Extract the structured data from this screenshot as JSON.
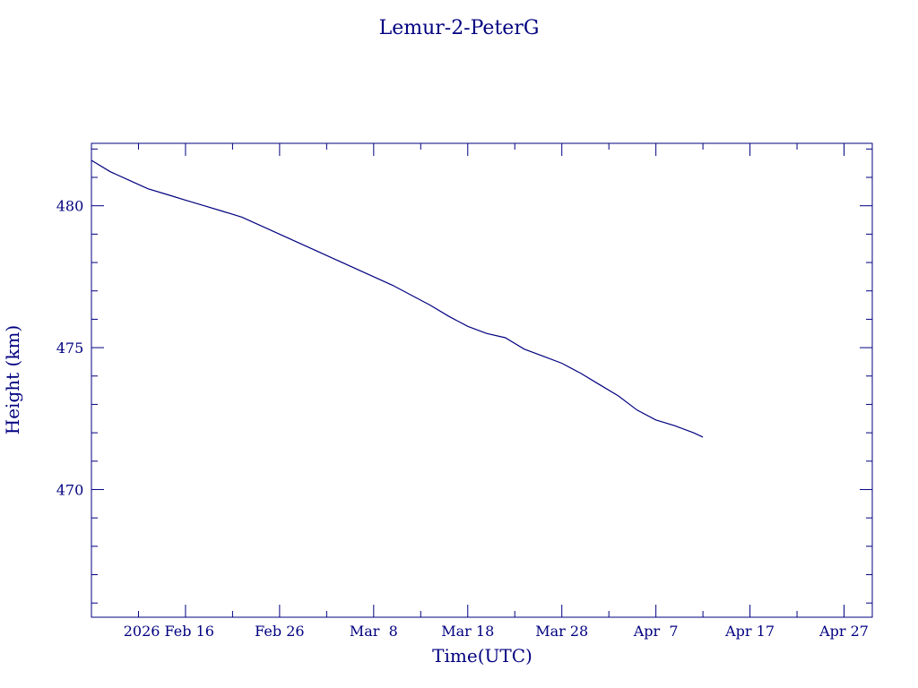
{
  "colors": {
    "ink": "#000080",
    "background": "#ffffff"
  },
  "chart_data": {
    "type": "line",
    "title": "Lemur-2-PeterG",
    "xlabel": "Time(UTC)",
    "ylabel": "Height (km)",
    "xlim": [
      "2026-02-06",
      "2026-04-30"
    ],
    "ylim": [
      465.5,
      482.2
    ],
    "x_ticks": [
      {
        "date": "2026-02-16",
        "label": "2026 Feb 16"
      },
      {
        "date": "2026-02-26",
        "label": "Feb 26"
      },
      {
        "date": "2026-03-08",
        "label": "Mar  8"
      },
      {
        "date": "2026-03-18",
        "label": "Mar 18"
      },
      {
        "date": "2026-03-28",
        "label": "Mar 28"
      },
      {
        "date": "2026-04-07",
        "label": "Apr  7"
      },
      {
        "date": "2026-04-17",
        "label": "Apr 17"
      },
      {
        "date": "2026-04-27",
        "label": "Apr 27"
      }
    ],
    "x_minor_tick_days": 5,
    "y_ticks": [
      470,
      475,
      480
    ],
    "y_minor_step": 1,
    "grid": false,
    "series": [
      {
        "x": [
          "2026-02-06",
          "2026-02-08",
          "2026-02-10",
          "2026-02-12",
          "2026-02-14",
          "2026-02-16",
          "2026-02-18",
          "2026-02-20",
          "2026-02-22",
          "2026-02-24",
          "2026-02-26",
          "2026-02-28",
          "2026-03-02",
          "2026-03-04",
          "2026-03-06",
          "2026-03-08",
          "2026-03-10",
          "2026-03-12",
          "2026-03-14",
          "2026-03-16",
          "2026-03-18",
          "2026-03-20",
          "2026-03-22",
          "2026-03-24",
          "2026-03-26",
          "2026-03-28",
          "2026-03-30",
          "2026-04-01",
          "2026-04-03",
          "2026-04-05",
          "2026-04-07",
          "2026-04-09",
          "2026-04-11",
          "2026-04-12"
        ],
        "y": [
          481.6,
          481.2,
          480.9,
          480.6,
          480.4,
          480.2,
          480.0,
          479.8,
          479.6,
          479.3,
          479.0,
          478.7,
          478.4,
          478.1,
          477.8,
          477.5,
          477.2,
          476.85,
          476.5,
          476.1,
          475.75,
          475.5,
          475.35,
          474.95,
          474.7,
          474.45,
          474.1,
          473.7,
          473.3,
          472.8,
          472.45,
          472.25,
          472.0,
          471.85
        ]
      }
    ]
  }
}
